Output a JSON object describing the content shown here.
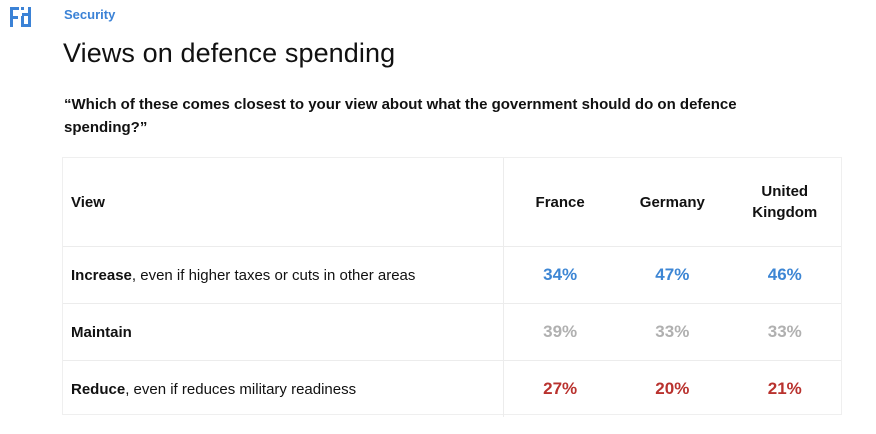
{
  "header": {
    "logo_icon": "yougov-logo-icon",
    "section": "Security",
    "title": "Views on defence spending",
    "question": "“Which of these comes closest to your view about what the government should do on defence spending?”"
  },
  "colors": {
    "increase": "#3d86d4",
    "maintain": "#b0b0b0",
    "reduce": "#b9322e",
    "section_tag": "#3b82d6"
  },
  "chart_data": {
    "type": "table",
    "columns": [
      "View",
      "France",
      "Germany",
      "United Kingdom"
    ],
    "column_headers": {
      "view": "View",
      "france": "France",
      "germany": "Germany",
      "uk_line1": "United",
      "uk_line2": "Kingdom"
    },
    "rows": [
      {
        "label_bold": "Increase",
        "label_rest": ", even if higher taxes or cuts in other areas",
        "france": "34%",
        "germany": "47%",
        "uk": "46%"
      },
      {
        "label_bold": "Maintain",
        "label_rest": "",
        "france": "39%",
        "germany": "33%",
        "uk": "33%"
      },
      {
        "label_bold": "Reduce",
        "label_rest": ", even if reduces military readiness",
        "france": "27%",
        "germany": "20%",
        "uk": "21%"
      }
    ]
  }
}
